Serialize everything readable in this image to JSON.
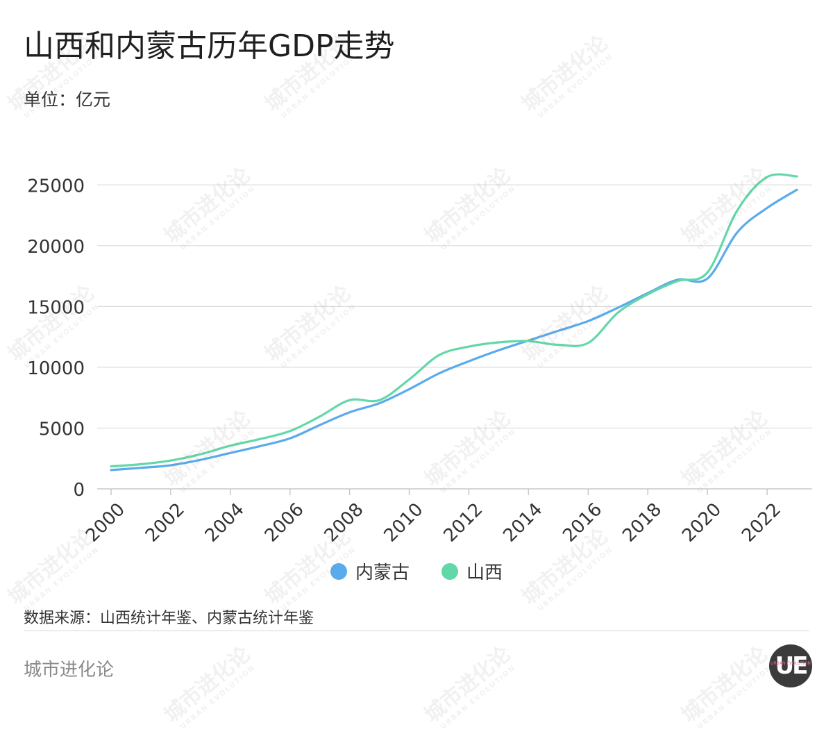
{
  "title": "山西和内蒙古历年GDP走势",
  "unit_label": "单位：亿元",
  "source": "数据来源：山西统计年鉴、内蒙古统计年鉴",
  "brand": "城市进化论",
  "watermark": {
    "cn": "城市进化论",
    "en": "URBAN EVOLUTION"
  },
  "logo": {
    "text": "UE",
    "sub": "URBAN EVOLUTION"
  },
  "colors": {
    "内蒙古": "#5aabec",
    "山西": "#62d7a8",
    "grid": "#dcdcdc",
    "axis": "#c8c8c8"
  },
  "chart_data": {
    "type": "line",
    "title": "山西和内蒙古历年GDP走势",
    "ylabel": "单位：亿元",
    "xlabel": "",
    "x": [
      2000,
      2001,
      2002,
      2003,
      2004,
      2005,
      2006,
      2007,
      2008,
      2009,
      2010,
      2011,
      2012,
      2013,
      2014,
      2015,
      2016,
      2017,
      2018,
      2019,
      2020,
      2021,
      2022,
      2023
    ],
    "x_ticks": [
      "2000",
      "2002",
      "2004",
      "2006",
      "2008",
      "2010",
      "2012",
      "2014",
      "2016",
      "2018",
      "2020",
      "2022"
    ],
    "y_ticks": [
      0,
      5000,
      10000,
      15000,
      20000,
      25000
    ],
    "ylim": [
      0,
      26500
    ],
    "grid": true,
    "legend_position": "bottom-center",
    "series": [
      {
        "name": "内蒙古",
        "color": "#5aabec",
        "values": [
          1550,
          1730,
          1940,
          2390,
          2950,
          3520,
          4150,
          5250,
          6300,
          7050,
          8200,
          9500,
          10500,
          11400,
          12200,
          13000,
          13800,
          14900,
          16100,
          17200,
          17300,
          21100,
          23100,
          24600
        ]
      },
      {
        "name": "山西",
        "color": "#62d7a8",
        "values": [
          1850,
          2030,
          2330,
          2850,
          3550,
          4100,
          4750,
          5950,
          7300,
          7300,
          9000,
          11000,
          11700,
          12050,
          12150,
          11850,
          12000,
          14500,
          16000,
          17100,
          17800,
          22900,
          25650,
          25700
        ]
      }
    ]
  }
}
